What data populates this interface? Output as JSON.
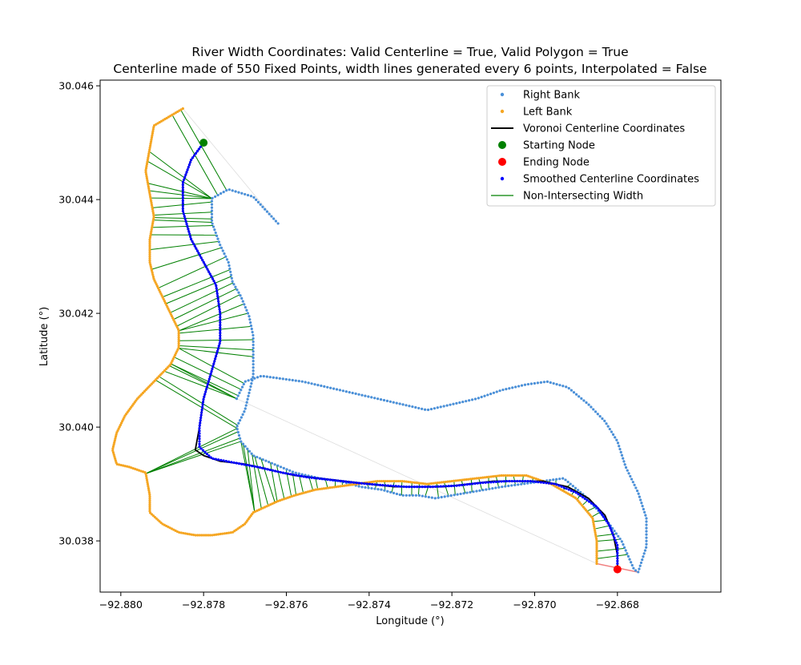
{
  "chart_data": {
    "type": "scatter",
    "title": "River Width Coordinates: Valid Centerline = True, Valid Polygon = True",
    "subtitle": "Centerline made of 550 Fixed Points, width lines generated every 6 points, Interpolated = False",
    "xlabel": "Longitude (°)",
    "ylabel": "Latitude (°)",
    "xlim": [
      -92.8805,
      -92.8655
    ],
    "ylim": [
      30.0371,
      30.0461
    ],
    "xticks": [
      -92.88,
      -92.878,
      -92.876,
      -92.874,
      -92.872,
      -92.87,
      -92.868
    ],
    "xtick_labels": [
      "−92.880",
      "−92.878",
      "−92.876",
      "−92.874",
      "−92.872",
      "−92.870",
      "−92.868"
    ],
    "yticks": [
      30.038,
      30.04,
      30.042,
      30.044,
      30.046
    ],
    "ytick_labels": [
      "30.038",
      "30.040",
      "30.042",
      "30.044",
      "30.046"
    ],
    "grid": false,
    "legend_position": "upper right",
    "legend": [
      {
        "label": "Right Bank",
        "kind": "dot",
        "color": "#4a90d9"
      },
      {
        "label": "Left Bank",
        "kind": "dot",
        "color": "#f5a623"
      },
      {
        "label": "Voronoi Centerline Coordinates",
        "kind": "line",
        "color": "#000000"
      },
      {
        "label": "Starting Node",
        "kind": "bigdot",
        "color": "#008000"
      },
      {
        "label": "Ending Node",
        "kind": "bigdot",
        "color": "#ff0000"
      },
      {
        "label": "Smoothed Centerline Coordinates",
        "kind": "dot",
        "color": "#0000ff"
      },
      {
        "label": "Non-Intersecting Width",
        "kind": "line",
        "color": "#008000"
      }
    ],
    "series": [
      {
        "name": "Right Bank",
        "color": "#4a90d9",
        "points": [
          [
            -92.8762,
            30.04358
          ],
          [
            -92.8768,
            30.04405
          ],
          [
            -92.8774,
            30.04418
          ],
          [
            -92.8778,
            30.04402
          ],
          [
            -92.8778,
            30.0436
          ],
          [
            -92.8776,
            30.0432
          ],
          [
            -92.8774,
            30.0429
          ],
          [
            -92.8773,
            30.04255
          ],
          [
            -92.8771,
            30.0423
          ],
          [
            -92.8769,
            30.04195
          ],
          [
            -92.8768,
            30.0416
          ],
          [
            -92.8768,
            30.04125
          ],
          [
            -92.8768,
            30.0409
          ],
          [
            -92.8769,
            30.0406
          ],
          [
            -92.877,
            30.0403
          ],
          [
            -92.8772,
            30.04
          ],
          [
            -92.8771,
            30.03975
          ],
          [
            -92.8768,
            30.0395
          ],
          [
            -92.8763,
            30.03935
          ],
          [
            -92.8758,
            30.0392
          ],
          [
            -92.8752,
            30.0391
          ],
          [
            -92.8747,
            30.03905
          ],
          [
            -92.8742,
            30.03895
          ],
          [
            -92.8737,
            30.0389
          ],
          [
            -92.8732,
            30.0388
          ],
          [
            -92.8728,
            30.0388
          ],
          [
            -92.8724,
            30.03875
          ],
          [
            -92.872,
            30.0388
          ],
          [
            -92.8716,
            30.03885
          ],
          [
            -92.8712,
            30.0389
          ],
          [
            -92.8708,
            30.03895
          ],
          [
            -92.8703,
            30.039
          ],
          [
            -92.8698,
            30.03905
          ],
          [
            -92.8693,
            30.0391
          ],
          [
            -92.8688,
            30.0388
          ],
          [
            -92.8683,
            30.0384
          ],
          [
            -92.8679,
            30.038
          ],
          [
            -92.8676,
            30.0375
          ],
          [
            -92.8675,
            30.03745
          ],
          [
            -92.8673,
            30.0379
          ],
          [
            -92.8673,
            30.0384
          ],
          [
            -92.8675,
            30.03885
          ],
          [
            -92.8678,
            30.0393
          ],
          [
            -92.868,
            30.03975
          ],
          [
            -92.8683,
            30.0401
          ],
          [
            -92.8687,
            30.0404
          ],
          [
            -92.8692,
            30.0407
          ],
          [
            -92.8697,
            30.0408
          ],
          [
            -92.8702,
            30.04075
          ],
          [
            -92.8708,
            30.04065
          ],
          [
            -92.8714,
            30.0405
          ],
          [
            -92.872,
            30.0404
          ],
          [
            -92.8726,
            30.0403
          ],
          [
            -92.8732,
            30.0404
          ],
          [
            -92.8738,
            30.0405
          ],
          [
            -92.8744,
            30.0406
          ],
          [
            -92.875,
            30.0407
          ],
          [
            -92.8756,
            30.0408
          ],
          [
            -92.8761,
            30.04085
          ],
          [
            -92.8766,
            30.0409
          ],
          [
            -92.877,
            30.0408
          ],
          [
            -92.8772,
            30.0405
          ]
        ]
      },
      {
        "name": "Left Bank",
        "color": "#f5a623",
        "points": [
          [
            -92.8785,
            30.0456
          ],
          [
            -92.8792,
            30.0453
          ],
          [
            -92.8793,
            30.0449
          ],
          [
            -92.8794,
            30.0445
          ],
          [
            -92.8793,
            30.0441
          ],
          [
            -92.8792,
            30.0437
          ],
          [
            -92.8793,
            30.0433
          ],
          [
            -92.8793,
            30.0429
          ],
          [
            -92.8792,
            30.0426
          ],
          [
            -92.879,
            30.0423
          ],
          [
            -92.8788,
            30.042
          ],
          [
            -92.8786,
            30.0417
          ],
          [
            -92.8786,
            30.0414
          ],
          [
            -92.8788,
            30.0411
          ],
          [
            -92.8792,
            30.0408
          ],
          [
            -92.8796,
            30.0405
          ],
          [
            -92.8799,
            30.0402
          ],
          [
            -92.8801,
            30.0399
          ],
          [
            -92.8802,
            30.0396
          ],
          [
            -92.8801,
            30.03935
          ],
          [
            -92.8798,
            30.0393
          ],
          [
            -92.8794,
            30.0392
          ],
          [
            -92.8793,
            30.0388
          ],
          [
            -92.8793,
            30.0385
          ],
          [
            -92.879,
            30.0383
          ],
          [
            -92.8786,
            30.03815
          ],
          [
            -92.8782,
            30.0381
          ],
          [
            -92.8778,
            30.0381
          ],
          [
            -92.8773,
            30.03815
          ],
          [
            -92.877,
            30.0383
          ],
          [
            -92.8768,
            30.0385
          ],
          [
            -92.8765,
            30.0386
          ],
          [
            -92.8762,
            30.0387
          ],
          [
            -92.8758,
            30.0388
          ],
          [
            -92.8753,
            30.0389
          ],
          [
            -92.8748,
            30.03895
          ],
          [
            -92.8743,
            30.039
          ],
          [
            -92.8738,
            30.03905
          ],
          [
            -92.8732,
            30.03905
          ],
          [
            -92.8726,
            30.039
          ],
          [
            -92.872,
            30.03905
          ],
          [
            -92.8714,
            30.0391
          ],
          [
            -92.8708,
            30.03915
          ],
          [
            -92.8702,
            30.03915
          ],
          [
            -92.8696,
            30.039
          ],
          [
            -92.869,
            30.03875
          ],
          [
            -92.8686,
            30.0384
          ],
          [
            -92.8685,
            30.038
          ],
          [
            -92.8685,
            30.0376
          ]
        ]
      },
      {
        "name": "Voronoi Centerline Coordinates",
        "color": "#000000",
        "points": [
          [
            -92.878,
            30.045
          ],
          [
            -92.8783,
            30.0447
          ],
          [
            -92.8785,
            30.0443
          ],
          [
            -92.8785,
            30.0438
          ],
          [
            -92.8783,
            30.0433
          ],
          [
            -92.878,
            30.0429
          ],
          [
            -92.8777,
            30.0425
          ],
          [
            -92.8776,
            30.042
          ],
          [
            -92.8776,
            30.0415
          ],
          [
            -92.8778,
            30.041
          ],
          [
            -92.878,
            30.0405
          ],
          [
            -92.8781,
            30.04
          ],
          [
            -92.8782,
            30.0396
          ],
          [
            -92.878,
            30.0395
          ],
          [
            -92.8776,
            30.0394
          ],
          [
            -92.877,
            30.03935
          ],
          [
            -92.8764,
            30.03925
          ],
          [
            -92.8758,
            30.03915
          ],
          [
            -92.8752,
            30.0391
          ],
          [
            -92.8746,
            30.03905
          ],
          [
            -92.874,
            30.039
          ],
          [
            -92.8734,
            30.03895
          ],
          [
            -92.8728,
            30.03895
          ],
          [
            -92.8722,
            30.03895
          ],
          [
            -92.8716,
            30.039
          ],
          [
            -92.871,
            30.03905
          ],
          [
            -92.8704,
            30.03905
          ],
          [
            -92.8698,
            30.03905
          ],
          [
            -92.8692,
            30.03895
          ],
          [
            -92.8687,
            30.03875
          ],
          [
            -92.8683,
            30.03845
          ],
          [
            -92.8681,
            30.0381
          ],
          [
            -92.868,
            30.03775
          ],
          [
            -92.868,
            30.0375
          ]
        ]
      },
      {
        "name": "Smoothed Centerline Coordinates",
        "color": "#0000ff",
        "points": [
          [
            -92.878,
            30.045
          ],
          [
            -92.8783,
            30.0447
          ],
          [
            -92.8785,
            30.0443
          ],
          [
            -92.8785,
            30.0438
          ],
          [
            -92.8783,
            30.0433
          ],
          [
            -92.878,
            30.0429
          ],
          [
            -92.8777,
            30.0425
          ],
          [
            -92.8776,
            30.042
          ],
          [
            -92.8776,
            30.0415
          ],
          [
            -92.8778,
            30.041
          ],
          [
            -92.878,
            30.0405
          ],
          [
            -92.8781,
            30.04
          ],
          [
            -92.8781,
            30.03965
          ],
          [
            -92.8778,
            30.03945
          ],
          [
            -92.8773,
            30.03938
          ],
          [
            -92.8767,
            30.0393
          ],
          [
            -92.8761,
            30.0392
          ],
          [
            -92.8755,
            30.03912
          ],
          [
            -92.8749,
            30.03907
          ],
          [
            -92.8743,
            30.03902
          ],
          [
            -92.8737,
            30.03898
          ],
          [
            -92.8731,
            30.03895
          ],
          [
            -92.8725,
            30.03895
          ],
          [
            -92.8719,
            30.03897
          ],
          [
            -92.8713,
            30.03902
          ],
          [
            -92.8707,
            30.03905
          ],
          [
            -92.8701,
            30.03905
          ],
          [
            -92.8695,
            30.039
          ],
          [
            -92.869,
            30.03885
          ],
          [
            -92.8685,
            30.0386
          ],
          [
            -92.8682,
            30.03828
          ],
          [
            -92.868,
            30.03792
          ],
          [
            -92.868,
            30.0376
          ]
        ]
      }
    ],
    "starting_node": [
      -92.878,
      30.045
    ],
    "ending_node": [
      -92.868,
      30.0375
    ],
    "width_line_count": 92
  }
}
